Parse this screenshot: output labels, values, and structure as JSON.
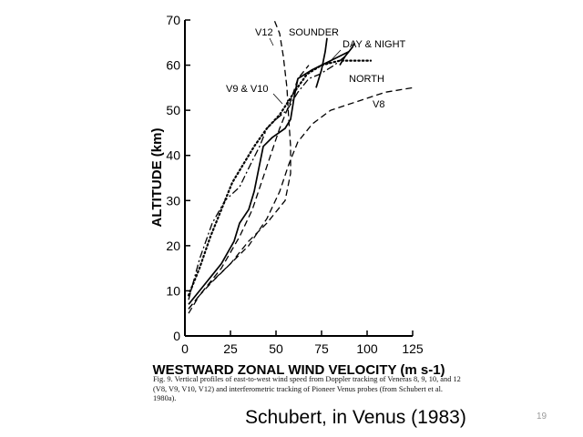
{
  "chart_data": {
    "type": "line",
    "xlabel": "WESTWARD ZONAL WIND VELOCITY (m s-1)",
    "ylabel": "ALTITUDE (km)",
    "xlim": [
      0,
      125
    ],
    "ylim": [
      0,
      70
    ],
    "xticks": [
      "0",
      "25",
      "50",
      "75",
      "100",
      "125"
    ],
    "yticks": [
      "0",
      "10",
      "20",
      "30",
      "40",
      "50",
      "60",
      "70"
    ],
    "grid": false,
    "legend": "none (curves labelled directly)",
    "series": [
      {
        "name": "V8",
        "style": "dashed",
        "points": [
          [
            2,
            5
          ],
          [
            8,
            9
          ],
          [
            15,
            12
          ],
          [
            25,
            16
          ],
          [
            35,
            20
          ],
          [
            45,
            26
          ],
          [
            52,
            32
          ],
          [
            57,
            38
          ],
          [
            62,
            43
          ],
          [
            70,
            47
          ],
          [
            80,
            50
          ],
          [
            95,
            52
          ],
          [
            110,
            54
          ],
          [
            125,
            55
          ]
        ]
      },
      {
        "name": "V9 & V10",
        "style": "dashed",
        "points": [
          [
            2,
            6
          ],
          [
            10,
            10
          ],
          [
            20,
            15
          ],
          [
            30,
            22
          ],
          [
            37,
            28
          ],
          [
            42,
            34
          ],
          [
            47,
            40
          ],
          [
            52,
            46
          ],
          [
            58,
            52
          ],
          [
            62,
            57
          ],
          [
            68,
            60
          ]
        ]
      },
      {
        "name": "V12",
        "style": "dashed",
        "points": [
          [
            2,
            6
          ],
          [
            12,
            11
          ],
          [
            25,
            16
          ],
          [
            35,
            21
          ],
          [
            45,
            25
          ],
          [
            55,
            30
          ],
          [
            58,
            36
          ],
          [
            58,
            42
          ],
          [
            57,
            48
          ],
          [
            56,
            55
          ],
          [
            54,
            62
          ],
          [
            52,
            67
          ],
          [
            49,
            70
          ]
        ]
      },
      {
        "name": "SOUNDER",
        "style": "solid",
        "points": [
          [
            2,
            7
          ],
          [
            10,
            11
          ],
          [
            20,
            16
          ],
          [
            27,
            21
          ],
          [
            30,
            25
          ],
          [
            35,
            28
          ],
          [
            38,
            32
          ],
          [
            41,
            38
          ],
          [
            43,
            42
          ],
          [
            48,
            44
          ],
          [
            55,
            46
          ],
          [
            58,
            48
          ],
          [
            60,
            53
          ],
          [
            62,
            57
          ],
          [
            70,
            59
          ],
          [
            80,
            61
          ],
          [
            90,
            63
          ]
        ]
      },
      {
        "name": "DAY & NIGHT",
        "style": "dotted",
        "points": [
          [
            2,
            9
          ],
          [
            8,
            15
          ],
          [
            14,
            22
          ],
          [
            20,
            28
          ],
          [
            26,
            34
          ],
          [
            32,
            38
          ],
          [
            38,
            42
          ],
          [
            45,
            46
          ],
          [
            52,
            49
          ],
          [
            60,
            54
          ],
          [
            67,
            58
          ],
          [
            75,
            60
          ],
          [
            85,
            61
          ],
          [
            93,
            61
          ],
          [
            102,
            61
          ]
        ]
      },
      {
        "name": "NORTH",
        "style": "dash-dot",
        "points": [
          [
            2,
            8
          ],
          [
            8,
            17
          ],
          [
            15,
            25
          ],
          [
            22,
            30
          ],
          [
            30,
            33
          ],
          [
            36,
            38
          ],
          [
            41,
            42
          ],
          [
            45,
            46
          ],
          [
            50,
            48
          ],
          [
            56,
            50
          ],
          [
            62,
            54
          ],
          [
            68,
            57
          ],
          [
            74,
            58
          ],
          [
            82,
            60
          ],
          [
            88,
            62
          ]
        ]
      },
      {
        "name": "",
        "style": "solid",
        "points": [
          [
            72,
            55
          ],
          [
            75,
            59
          ],
          [
            77,
            63
          ],
          [
            78,
            66
          ]
        ]
      },
      {
        "name": "",
        "style": "solid",
        "points": [
          [
            85,
            60
          ],
          [
            88,
            62
          ],
          [
            92,
            64
          ],
          [
            93,
            65
          ]
        ]
      }
    ],
    "annotations": [
      "V12",
      "SOUNDER",
      "DAY & NIGHT",
      "V9 & V10",
      "NORTH",
      "V8"
    ]
  },
  "caption": "Fig. 9. Vertical profiles of east-to-west wind speed from Doppler tracking of Veneras 8, 9, 10, and 12 (V8, V9, V10, V12) and interferometric tracking of Pioneer Venus probes (from Schubert et al. 1980a).",
  "credit": "Schubert, in Venus (1983)",
  "page_number": "19"
}
